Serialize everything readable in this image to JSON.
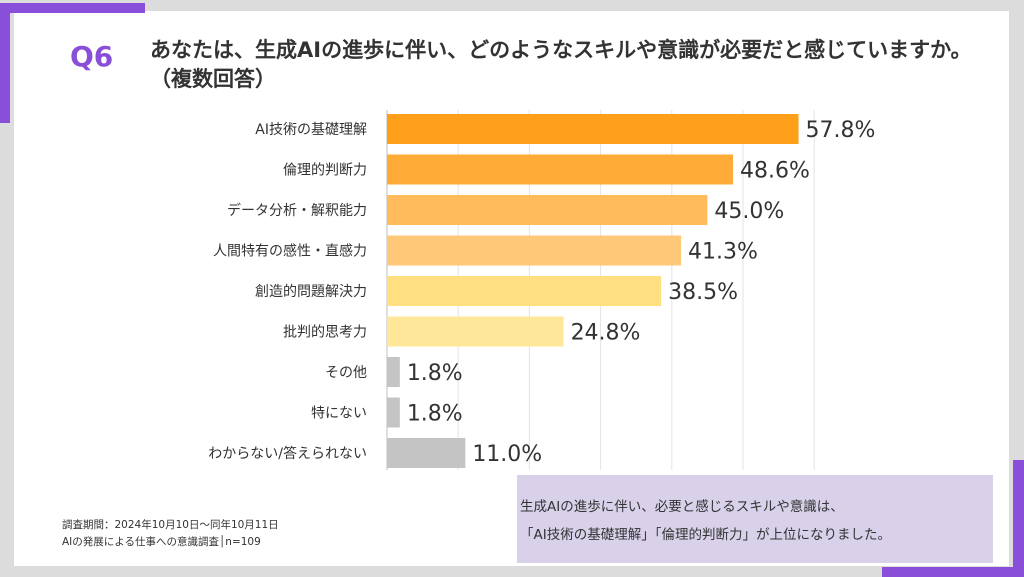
{
  "question": {
    "number": "Q6",
    "text": "あなたは、生成AIの進歩に伴い、どのようなスキルや意識が必要だと感じていますか。（複数回答）"
  },
  "chart_data": {
    "type": "bar",
    "orientation": "horizontal",
    "categories": [
      "AI技術の基礎理解",
      "倫理的判断力",
      "データ分析・解釈能力",
      "人間特有の感性・直感力",
      "創造的問題解決力",
      "批判的思考力",
      "その他",
      "特にない",
      "わからない/答えられない"
    ],
    "values": [
      57.8,
      48.6,
      45.0,
      41.3,
      38.5,
      24.8,
      1.8,
      1.8,
      11.0
    ],
    "value_labels": [
      "57.8%",
      "48.6%",
      "45.0%",
      "41.3%",
      "38.5%",
      "24.8%",
      "1.8%",
      "1.8%",
      "11.0%"
    ],
    "unit": "%",
    "xlim": [
      0,
      60
    ],
    "grid": true,
    "bar_colors": [
      "#ff9f1a",
      "#ffab38",
      "#ffbb5c",
      "#ffc778",
      "#ffdf80",
      "#ffe79a",
      "#c4c4c4",
      "#c4c4c4",
      "#c4c4c4"
    ]
  },
  "summary": {
    "line1": "生成AIの進歩に伴い、必要と感じるスキルや意識は、",
    "line2": "「AI技術の基礎理解」「倫理的判断力」が上位になりました。"
  },
  "notes": {
    "period": "調査期間：2024年10月10日～同年10月11日",
    "survey": "AIの発展による仕事への意識調査│n=109"
  }
}
